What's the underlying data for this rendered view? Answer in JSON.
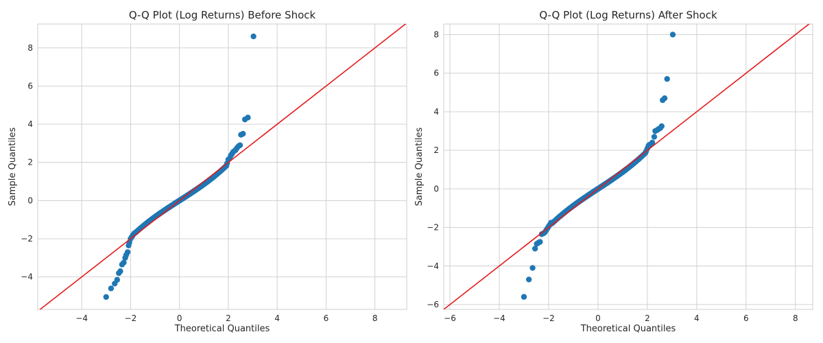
{
  "chart_data": [
    {
      "type": "scatter",
      "title": "Q-Q Plot (Log Returns) Before Shock",
      "xlabel": "Theoretical Quantiles",
      "ylabel": "Sample Quantiles",
      "xlim": [
        -5.8,
        9.3
      ],
      "ylim": [
        -5.7,
        9.25
      ],
      "xticks": [
        -4,
        -2,
        0,
        2,
        4,
        6,
        8
      ],
      "yticks": [
        -4,
        -2,
        0,
        2,
        4,
        6,
        8
      ],
      "grid": true,
      "marker_color": "#1f77b4",
      "reference_line": {
        "color": "#e41a1c",
        "slope": 1,
        "intercept": 0
      },
      "tail_points": [
        [
          -3.0,
          -5.05
        ],
        [
          -2.8,
          -4.6
        ],
        [
          -2.65,
          -4.35
        ],
        [
          -2.55,
          -4.15
        ],
        [
          -2.48,
          -3.8
        ],
        [
          -2.42,
          -3.7
        ],
        [
          -2.35,
          -3.35
        ],
        [
          -2.28,
          -3.25
        ],
        [
          -2.22,
          -3.0
        ],
        [
          -2.18,
          -2.85
        ],
        [
          -2.12,
          -2.7
        ],
        [
          -2.08,
          -2.35
        ],
        [
          -2.05,
          -2.2
        ],
        [
          -2.0,
          -2.0
        ],
        [
          -1.95,
          -1.9
        ],
        [
          -1.9,
          -1.8
        ],
        [
          -1.85,
          -1.72
        ],
        [
          -1.8,
          -1.68
        ],
        [
          1.95,
          1.95
        ],
        [
          2.0,
          2.15
        ],
        [
          2.05,
          2.2
        ],
        [
          2.1,
          2.35
        ],
        [
          2.15,
          2.45
        ],
        [
          2.2,
          2.55
        ],
        [
          2.25,
          2.6
        ],
        [
          2.3,
          2.65
        ],
        [
          2.35,
          2.75
        ],
        [
          2.42,
          2.85
        ],
        [
          2.48,
          2.9
        ],
        [
          2.52,
          3.45
        ],
        [
          2.6,
          3.5
        ],
        [
          2.68,
          4.25
        ],
        [
          2.8,
          4.35
        ],
        [
          3.03,
          8.6
        ]
      ],
      "body": {
        "n": 230,
        "x_range": [
          -1.8,
          1.95
        ],
        "slope": 0.82,
        "cubic": 0.035
      }
    },
    {
      "type": "scatter",
      "title": "Q-Q Plot (Log Returns) After Shock",
      "xlabel": "Theoretical Quantiles",
      "ylabel": "Sample Quantiles",
      "xlim": [
        -6.25,
        8.7
      ],
      "ylim": [
        -6.25,
        8.55
      ],
      "xticks": [
        -6,
        -4,
        -2,
        0,
        2,
        4,
        6,
        8
      ],
      "yticks": [
        -6,
        -4,
        -2,
        0,
        2,
        4,
        6,
        8
      ],
      "grid": true,
      "marker_color": "#1f77b4",
      "reference_line": {
        "color": "#e41a1c",
        "slope": 1,
        "intercept": 0
      },
      "tail_points": [
        [
          -3.0,
          -5.6
        ],
        [
          -2.8,
          -4.7
        ],
        [
          -2.65,
          -4.1
        ],
        [
          -2.55,
          -3.1
        ],
        [
          -2.48,
          -2.85
        ],
        [
          -2.42,
          -2.8
        ],
        [
          -2.35,
          -2.75
        ],
        [
          -2.28,
          -2.35
        ],
        [
          -2.2,
          -2.3
        ],
        [
          -2.15,
          -2.25
        ],
        [
          -2.1,
          -2.15
        ],
        [
          -2.05,
          -2.05
        ],
        [
          -2.0,
          -1.95
        ],
        [
          -1.95,
          -1.85
        ],
        [
          -1.9,
          -1.75
        ],
        [
          1.95,
          1.95
        ],
        [
          2.0,
          2.1
        ],
        [
          2.05,
          2.25
        ],
        [
          2.1,
          2.3
        ],
        [
          2.2,
          2.4
        ],
        [
          2.28,
          2.7
        ],
        [
          2.32,
          3.0
        ],
        [
          2.4,
          3.05
        ],
        [
          2.45,
          3.1
        ],
        [
          2.52,
          3.15
        ],
        [
          2.58,
          3.25
        ],
        [
          2.62,
          4.6
        ],
        [
          2.7,
          4.7
        ],
        [
          2.8,
          5.7
        ],
        [
          3.03,
          8.0
        ]
      ],
      "body": {
        "n": 230,
        "x_range": [
          -1.9,
          1.95
        ],
        "slope": 0.84,
        "cubic": 0.035
      }
    }
  ]
}
